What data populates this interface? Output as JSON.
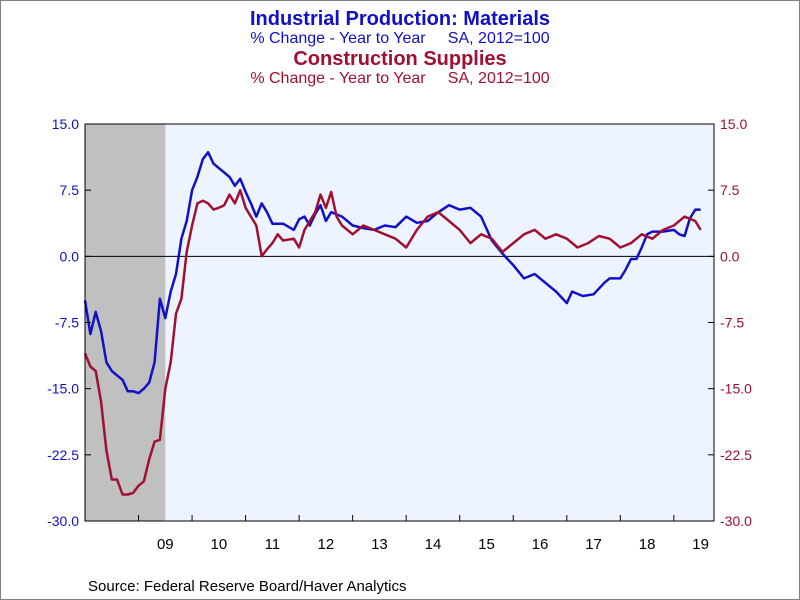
{
  "header": {
    "title1": "Industrial Production: Materials",
    "subtitle1": "% Change - Year to Year     SA, 2012=100",
    "title2": "Construction Supplies",
    "subtitle2": "% Change - Year to Year     SA, 2012=100"
  },
  "footer": {
    "source": "Source:  Federal Reserve Board/Haver Analytics"
  },
  "colors": {
    "blue": "#1010c8",
    "red": "#a01030",
    "plot_bg": "#eef4ff",
    "recession": "#c0c0c0"
  },
  "chart_data": {
    "type": "line",
    "title": "Industrial Production: Materials / Construction Supplies",
    "ylim": [
      -30,
      15
    ],
    "y_ticks": [
      "15.0",
      "7.5",
      "0.0",
      "-7.5",
      "-15.0",
      "-22.5",
      "-30.0"
    ],
    "y_tick_values": [
      15,
      7.5,
      0,
      -7.5,
      -15,
      -22.5,
      -30
    ],
    "x_range": [
      2008.0,
      2019.75
    ],
    "x_tick_labels": [
      "09",
      "10",
      "11",
      "12",
      "13",
      "14",
      "15",
      "16",
      "17",
      "18",
      "19"
    ],
    "x_tick_positions": [
      2009.0,
      2010.0,
      2011.0,
      2012.0,
      2013.0,
      2014.0,
      2015.0,
      2016.0,
      2017.0,
      2018.0,
      2019.0
    ],
    "recession": [
      2008.0,
      2009.5
    ],
    "zero_line": true,
    "legend": "none",
    "series": [
      {
        "name": "Industrial Production: Materials",
        "color": "#1010c8",
        "points": [
          [
            2008.0,
            -5.0
          ],
          [
            2008.1,
            -8.8
          ],
          [
            2008.2,
            -6.3
          ],
          [
            2008.3,
            -8.5
          ],
          [
            2008.4,
            -12.0
          ],
          [
            2008.5,
            -13.0
          ],
          [
            2008.6,
            -13.5
          ],
          [
            2008.7,
            -14.0
          ],
          [
            2008.8,
            -15.3
          ],
          [
            2008.9,
            -15.3
          ],
          [
            2009.0,
            -15.5
          ],
          [
            2009.1,
            -15.0
          ],
          [
            2009.2,
            -14.3
          ],
          [
            2009.3,
            -12.0
          ],
          [
            2009.4,
            -4.8
          ],
          [
            2009.5,
            -7.0
          ],
          [
            2009.6,
            -4.0
          ],
          [
            2009.7,
            -2.0
          ],
          [
            2009.8,
            2.0
          ],
          [
            2009.9,
            4.0
          ],
          [
            2010.0,
            7.5
          ],
          [
            2010.1,
            9.0
          ],
          [
            2010.2,
            11.0
          ],
          [
            2010.3,
            11.8
          ],
          [
            2010.4,
            10.5
          ],
          [
            2010.5,
            10.0
          ],
          [
            2010.6,
            9.5
          ],
          [
            2010.7,
            9.0
          ],
          [
            2010.8,
            8.0
          ],
          [
            2010.9,
            8.8
          ],
          [
            2011.0,
            7.3
          ],
          [
            2011.1,
            6.0
          ],
          [
            2011.2,
            4.5
          ],
          [
            2011.3,
            6.0
          ],
          [
            2011.4,
            5.0
          ],
          [
            2011.5,
            3.7
          ],
          [
            2011.7,
            3.7
          ],
          [
            2011.9,
            3.0
          ],
          [
            2012.0,
            4.2
          ],
          [
            2012.1,
            4.5
          ],
          [
            2012.2,
            3.5
          ],
          [
            2012.3,
            4.8
          ],
          [
            2012.4,
            5.8
          ],
          [
            2012.5,
            4.0
          ],
          [
            2012.6,
            5.0
          ],
          [
            2012.8,
            4.5
          ],
          [
            2013.0,
            3.5
          ],
          [
            2013.2,
            3.2
          ],
          [
            2013.4,
            3.0
          ],
          [
            2013.6,
            3.5
          ],
          [
            2013.8,
            3.3
          ],
          [
            2014.0,
            4.5
          ],
          [
            2014.2,
            3.8
          ],
          [
            2014.4,
            4.0
          ],
          [
            2014.6,
            5.0
          ],
          [
            2014.8,
            5.8
          ],
          [
            2015.0,
            5.3
          ],
          [
            2015.2,
            5.5
          ],
          [
            2015.4,
            4.5
          ],
          [
            2015.6,
            1.8
          ],
          [
            2015.8,
            0.3
          ],
          [
            2016.0,
            -1.0
          ],
          [
            2016.2,
            -2.5
          ],
          [
            2016.4,
            -2.0
          ],
          [
            2016.6,
            -3.0
          ],
          [
            2016.8,
            -4.0
          ],
          [
            2017.0,
            -5.3
          ],
          [
            2017.1,
            -4.0
          ],
          [
            2017.3,
            -4.5
          ],
          [
            2017.5,
            -4.3
          ],
          [
            2017.7,
            -3.0
          ],
          [
            2017.8,
            -2.5
          ],
          [
            2018.0,
            -2.5
          ],
          [
            2018.1,
            -1.5
          ],
          [
            2018.2,
            -0.3
          ],
          [
            2018.3,
            -0.3
          ],
          [
            2018.4,
            1.0
          ],
          [
            2018.5,
            2.5
          ],
          [
            2018.6,
            2.8
          ],
          [
            2018.8,
            2.8
          ],
          [
            2019.0,
            3.0
          ],
          [
            2019.1,
            2.5
          ],
          [
            2019.2,
            2.3
          ],
          [
            2019.3,
            4.3
          ],
          [
            2019.4,
            5.3
          ],
          [
            2019.5,
            5.3
          ]
        ]
      },
      {
        "name": "Construction Supplies",
        "color": "#a01030",
        "points": [
          [
            2008.0,
            -11.0
          ],
          [
            2008.1,
            -12.5
          ],
          [
            2008.2,
            -13.0
          ],
          [
            2008.3,
            -16.5
          ],
          [
            2008.4,
            -22.0
          ],
          [
            2008.5,
            -25.3
          ],
          [
            2008.6,
            -25.3
          ],
          [
            2008.7,
            -27.0
          ],
          [
            2008.8,
            -27.0
          ],
          [
            2008.9,
            -26.8
          ],
          [
            2009.0,
            -26.0
          ],
          [
            2009.1,
            -25.5
          ],
          [
            2009.2,
            -23.0
          ],
          [
            2009.3,
            -21.0
          ],
          [
            2009.4,
            -20.8
          ],
          [
            2009.5,
            -15.0
          ],
          [
            2009.6,
            -12.0
          ],
          [
            2009.7,
            -6.5
          ],
          [
            2009.8,
            -4.8
          ],
          [
            2009.9,
            0.5
          ],
          [
            2010.0,
            3.5
          ],
          [
            2010.1,
            6.0
          ],
          [
            2010.2,
            6.3
          ],
          [
            2010.3,
            6.0
          ],
          [
            2010.4,
            5.3
          ],
          [
            2010.5,
            5.5
          ],
          [
            2010.6,
            5.8
          ],
          [
            2010.7,
            7.0
          ],
          [
            2010.8,
            6.0
          ],
          [
            2010.9,
            7.5
          ],
          [
            2011.0,
            5.5
          ],
          [
            2011.1,
            4.5
          ],
          [
            2011.2,
            3.5
          ],
          [
            2011.3,
            0.0
          ],
          [
            2011.4,
            0.8
          ],
          [
            2011.5,
            1.5
          ],
          [
            2011.6,
            2.5
          ],
          [
            2011.7,
            1.8
          ],
          [
            2011.9,
            2.0
          ],
          [
            2012.0,
            1.0
          ],
          [
            2012.1,
            3.0
          ],
          [
            2012.3,
            5.0
          ],
          [
            2012.4,
            7.0
          ],
          [
            2012.5,
            5.5
          ],
          [
            2012.6,
            7.3
          ],
          [
            2012.7,
            4.5
          ],
          [
            2012.8,
            3.5
          ],
          [
            2013.0,
            2.5
          ],
          [
            2013.2,
            3.5
          ],
          [
            2013.4,
            3.0
          ],
          [
            2013.6,
            2.5
          ],
          [
            2013.8,
            2.0
          ],
          [
            2014.0,
            1.0
          ],
          [
            2014.2,
            3.0
          ],
          [
            2014.4,
            4.5
          ],
          [
            2014.6,
            5.0
          ],
          [
            2014.8,
            4.0
          ],
          [
            2015.0,
            3.0
          ],
          [
            2015.2,
            1.5
          ],
          [
            2015.4,
            2.5
          ],
          [
            2015.6,
            2.0
          ],
          [
            2015.8,
            0.5
          ],
          [
            2016.0,
            1.5
          ],
          [
            2016.2,
            2.5
          ],
          [
            2016.4,
            3.0
          ],
          [
            2016.6,
            2.0
          ],
          [
            2016.8,
            2.5
          ],
          [
            2017.0,
            2.0
          ],
          [
            2017.2,
            1.0
          ],
          [
            2017.4,
            1.5
          ],
          [
            2017.6,
            2.3
          ],
          [
            2017.8,
            2.0
          ],
          [
            2018.0,
            1.0
          ],
          [
            2018.2,
            1.5
          ],
          [
            2018.4,
            2.5
          ],
          [
            2018.6,
            2.0
          ],
          [
            2018.8,
            3.0
          ],
          [
            2019.0,
            3.5
          ],
          [
            2019.2,
            4.5
          ],
          [
            2019.4,
            4.0
          ],
          [
            2019.5,
            3.0
          ]
        ]
      }
    ]
  }
}
